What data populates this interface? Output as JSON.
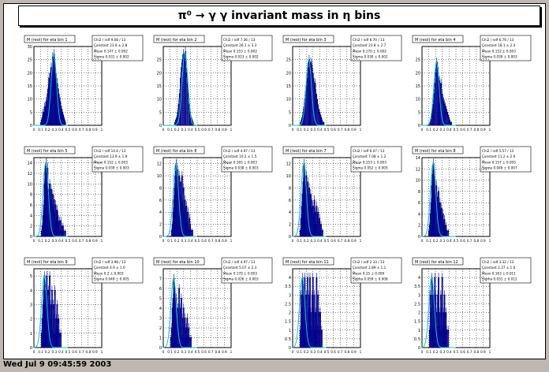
{
  "title": "π⁰ → γ γ invariant mass in η bins",
  "footer": "Wed Jul  9 09:45:59 2003",
  "chart_data": [
    {
      "type": "bar",
      "title": "M (reol) for eta bin 1",
      "ylim": [
        0,
        30
      ],
      "yticks": [
        0,
        5,
        10,
        15,
        20,
        25,
        30
      ],
      "xticks": [
        "0",
        "0.1",
        "0.2",
        "0.3",
        "0.4",
        "0.5",
        "0.6",
        "0.7",
        "0.8",
        "0.9",
        "1"
      ],
      "stats": [
        "Chi2 / ndf   9.08 / 13",
        "Constant   23.9 ± 2.8",
        "Mean   0.147 ± 0.002",
        "Sigma   0.031 ± 0.002"
      ],
      "values": [
        0,
        0,
        0,
        0,
        0,
        0,
        0,
        0,
        0,
        1,
        2,
        3,
        5,
        4,
        7,
        6,
        9,
        8,
        12,
        14,
        18,
        15,
        20,
        22,
        18,
        26,
        24,
        27,
        22,
        20,
        18,
        16,
        14,
        12,
        10,
        9,
        7,
        6,
        5,
        4,
        3,
        2,
        1,
        0,
        0,
        0
      ]
    },
    {
      "type": "bar",
      "title": "M (reol) for eta bin 2",
      "ylim": [
        0,
        30
      ],
      "yticks": [
        0,
        5,
        10,
        15,
        20,
        25
      ],
      "xticks": [
        "0",
        "0.1",
        "0.2",
        "0.3",
        "0.4",
        "0.5",
        "0.6",
        "0.7",
        "0.8",
        "0.9",
        "1"
      ],
      "stats": [
        "Chi2 / ndf   7.36 / 13",
        "Constant   26.1 ± 3.3",
        "Mean   0.153 ± 0.002",
        "Sigma   0.023 ± 0.002"
      ],
      "values": [
        0,
        0,
        0,
        0,
        0,
        0,
        0,
        0,
        0,
        0,
        0,
        0,
        1,
        2,
        3,
        5,
        8,
        12,
        18,
        22,
        25,
        27,
        24,
        28,
        20,
        16,
        12,
        8,
        5,
        3,
        2,
        1,
        0,
        0,
        0,
        0
      ]
    },
    {
      "type": "bar",
      "title": "M (reol) for eta bin 3",
      "ylim": [
        0,
        30
      ],
      "yticks": [
        0,
        5,
        10,
        15,
        20,
        25
      ],
      "xticks": [
        "0",
        "0.1",
        "0.2",
        "0.3",
        "0.4",
        "0.5",
        "0.6",
        "0.7",
        "0.8",
        "0.9",
        "1"
      ],
      "stats": [
        "Chi2 / ndf   6.70 / 13",
        "Constant   23.8 ± 2.7",
        "Mean   0.170 ± 0.002",
        "Sigma   0.030 ± 0.002"
      ],
      "values": [
        0,
        0,
        0,
        0,
        0,
        0,
        0,
        0,
        0,
        1,
        2,
        3,
        5,
        7,
        10,
        13,
        15,
        18,
        22,
        25,
        21,
        24,
        23,
        20,
        18,
        15,
        16,
        12,
        10,
        8,
        6,
        5,
        4,
        3,
        2,
        1,
        1,
        0,
        0,
        0
      ]
    },
    {
      "type": "bar",
      "title": "M (reol) for eta bin 4",
      "ylim": [
        0,
        30
      ],
      "yticks": [
        0,
        5,
        10,
        15,
        20,
        25
      ],
      "xticks": [
        "0",
        "0.1",
        "0.2",
        "0.3",
        "0.4",
        "0.5",
        "0.6",
        "0.7",
        "0.8",
        "0.9",
        "1"
      ],
      "stats": [
        "Chi2 / ndf   6.76 / 13",
        "Constant   18.1 ± 2.4",
        "Mean   0.152 ± 0.003",
        "Sigma   0.039 ± 0.003"
      ],
      "values": [
        0,
        0,
        0,
        0,
        0,
        0,
        0,
        0,
        0,
        1,
        2,
        4,
        6,
        8,
        12,
        16,
        20,
        24,
        22,
        18,
        17,
        14,
        16,
        12,
        10,
        9,
        8,
        7,
        6,
        5,
        4,
        3,
        2,
        1,
        1,
        0,
        0,
        0,
        0,
        0
      ]
    },
    {
      "type": "bar",
      "title": "M (reol) for eta bin 5",
      "ylim": [
        0,
        15
      ],
      "yticks": [
        0,
        2,
        4,
        6,
        8,
        10,
        12,
        14
      ],
      "xticks": [
        "0",
        "0.1",
        "0.2",
        "0.3",
        "0.4",
        "0.5",
        "0.6",
        "0.7",
        "0.8",
        "0.9",
        "1"
      ],
      "stats": [
        "Chi2 / ndf   14.6 / 13",
        "Constant   13.9 ± 1.9",
        "Mean   0.152 ± 0.003",
        "Sigma   0.039 ± 0.003"
      ],
      "values": [
        0,
        0,
        0,
        0,
        0,
        0,
        0,
        0,
        0,
        0,
        1,
        2,
        4,
        6,
        10,
        13,
        14,
        12,
        13,
        9,
        8,
        10,
        7,
        9,
        6,
        8,
        5,
        7,
        4,
        6,
        3,
        5,
        4,
        2,
        3,
        1,
        3,
        2,
        1,
        2,
        1,
        0,
        1,
        0,
        0,
        0
      ]
    },
    {
      "type": "bar",
      "title": "M (reol) for eta bin 6",
      "ylim": [
        0,
        13
      ],
      "yticks": [
        0,
        2,
        4,
        6,
        8,
        10,
        12
      ],
      "xticks": [
        "0",
        "0.1",
        "0.2",
        "0.3",
        "0.4",
        "0.5",
        "0.6",
        "0.7",
        "0.8",
        "0.9",
        "1"
      ],
      "stats": [
        "Chi2 / ndf   4.97 / 13",
        "Constant   10.2 ± 1.5",
        "Mean   0.165 ± 0.003",
        "Sigma   0.038 ± 0.003"
      ],
      "values": [
        0,
        0,
        0,
        0,
        0,
        0,
        0,
        0,
        0,
        0,
        0,
        1,
        2,
        4,
        6,
        8,
        10,
        12,
        9,
        11,
        8,
        10,
        7,
        9,
        6,
        10,
        5,
        8,
        4,
        6,
        3,
        5,
        2,
        4,
        1,
        3,
        2,
        1,
        0,
        1,
        0,
        0,
        0,
        0,
        0,
        0
      ]
    },
    {
      "type": "bar",
      "title": "M (reol) for eta bin 7",
      "ylim": [
        0,
        13
      ],
      "yticks": [
        0,
        2,
        4,
        6,
        8,
        10,
        12
      ],
      "xticks": [
        "0",
        "0.1",
        "0.2",
        "0.3",
        "0.4",
        "0.5",
        "0.6",
        "0.7",
        "0.8",
        "0.9",
        "1"
      ],
      "stats": [
        "Chi2 / ndf   6.07 / 13",
        "Constant   7.08 ± 1.2",
        "Mean   0.153 ± 0.003",
        "Sigma   0.052 ± 0.005"
      ],
      "values": [
        0,
        0,
        0,
        0,
        0,
        0,
        0,
        0,
        0,
        0,
        1,
        3,
        5,
        7,
        9,
        12,
        11,
        8,
        10,
        7,
        9,
        6,
        8,
        5,
        7,
        6,
        4,
        5,
        3,
        6,
        4,
        2,
        5,
        3,
        4,
        2,
        3,
        1,
        2,
        0,
        1,
        0,
        0,
        0,
        0,
        0
      ]
    },
    {
      "type": "bar",
      "title": "M (reol) for eta bin 8",
      "ylim": [
        0,
        14
      ],
      "yticks": [
        0,
        2,
        4,
        6,
        8,
        10,
        12,
        14
      ],
      "xticks": [
        "0",
        "0.1",
        "0.2",
        "0.3",
        "0.4",
        "0.5",
        "0.6",
        "0.7",
        "0.8",
        "0.9",
        "1"
      ],
      "stats": [
        "Chi2 / ndf   5.57 / 13",
        "Constant   11.2 ± 2.0",
        "Mean   0.157 ± 0.005",
        "Sigma   0.049 ± 0.007"
      ],
      "values": [
        0,
        0,
        0,
        0,
        0,
        0,
        0,
        0,
        0,
        1,
        2,
        4,
        6,
        9,
        11,
        13,
        12,
        10,
        8,
        9,
        7,
        6,
        8,
        5,
        6,
        4,
        5,
        3,
        4,
        2,
        3,
        1,
        2,
        1,
        0,
        1,
        0,
        0,
        0,
        0,
        0,
        0,
        0,
        0,
        0,
        0
      ]
    },
    {
      "type": "bar",
      "title": "M (reol) for eta bin 9",
      "ylim": [
        0,
        5.5
      ],
      "yticks": [
        0,
        1,
        2,
        3,
        4,
        5
      ],
      "xticks": [
        "0",
        "0.1",
        "0.2",
        "0.3",
        "0.4",
        "0.5",
        "0.6",
        "0.7",
        "0.8",
        "0.9",
        "1"
      ],
      "stats": [
        "Chi2 / ndf   3.98 / 13",
        "Constant   4.9 ± 1.0",
        "Mean   0.2 ± 0.003",
        "Sigma   0.049 ± 0.005"
      ],
      "values": [
        0,
        0,
        0,
        0,
        0,
        0,
        0,
        0,
        0,
        0,
        1,
        2,
        3,
        4,
        5,
        3,
        4,
        5,
        2,
        4,
        3,
        5,
        2,
        3,
        4,
        1,
        3,
        2,
        4,
        1,
        2,
        3,
        1,
        2,
        1,
        0,
        1,
        0,
        0,
        0,
        0,
        0,
        0,
        0,
        0,
        0
      ]
    },
    {
      "type": "bar",
      "title": "M (reol) for eta bin 10",
      "ylim": [
        0,
        8
      ],
      "yticks": [
        0,
        1,
        2,
        3,
        4,
        5,
        6,
        7
      ],
      "xticks": [
        "0",
        "0.1",
        "0.2",
        "0.3",
        "0.4",
        "0.5",
        "0.6",
        "0.7",
        "0.8",
        "0.9",
        "1"
      ],
      "stats": [
        "Chi2 / ndf   4.97 / 13",
        "Constant   5.07 ± 2.3",
        "Mean   0.170 ± 0.003",
        "Sigma   0.026 ± 0.003"
      ],
      "values": [
        0,
        0,
        0,
        0,
        0,
        0,
        0,
        0,
        0,
        0,
        1,
        2,
        4,
        5,
        7,
        6,
        3,
        5,
        2,
        4,
        3,
        6,
        2,
        4,
        5,
        1,
        3,
        4,
        2,
        3,
        1,
        2,
        3,
        1,
        2,
        1,
        0,
        1,
        0,
        0,
        0,
        0,
        0,
        0,
        0,
        0
      ]
    },
    {
      "type": "bar",
      "title": "M (reol) for eta bin 11",
      "ylim": [
        0,
        4.5
      ],
      "yticks": [
        0,
        0.5,
        1,
        1.5,
        2,
        2.5,
        3,
        3.5,
        4
      ],
      "xticks": [
        "0",
        "0.1",
        "0.2",
        "0.3",
        "0.4",
        "0.5",
        "0.6",
        "0.7",
        "0.8",
        "0.9",
        "1"
      ],
      "stats": [
        "Chi2 / ndf   2.33 / 13",
        "Constant   2.89 ± 1.1",
        "Mean   0.15 ± 0.009",
        "Sigma   0.059 ± 0.008"
      ],
      "values": [
        0,
        0,
        0,
        0,
        0,
        0,
        0,
        0,
        0,
        0,
        1,
        3,
        2,
        4,
        3,
        1,
        4,
        2,
        3,
        1,
        4,
        2,
        3,
        4,
        2,
        1,
        3,
        4,
        2,
        3,
        1,
        2,
        4,
        1,
        3,
        2,
        1,
        2,
        0,
        1,
        0,
        0,
        0,
        0,
        0,
        0
      ]
    },
    {
      "type": "bar",
      "title": "M (reol) for eta bin 12",
      "ylim": [
        0,
        4.5
      ],
      "yticks": [
        0,
        0.5,
        1,
        1.5,
        2,
        2.5,
        3,
        3.5,
        4
      ],
      "xticks": [
        "0",
        "0.1",
        "0.2",
        "0.3",
        "0.4",
        "0.5",
        "0.6",
        "0.7",
        "0.8",
        "0.9",
        "1"
      ],
      "stats": [
        "Chi2 / ndf   3.32 / 13",
        "Constant   2.37 ± 1.0",
        "Mean   0.163 ± 0.011",
        "Sigma   0.031 ± 0.012"
      ],
      "values": [
        0,
        0,
        0,
        0,
        0,
        0,
        0,
        0,
        0,
        0,
        1,
        3,
        2,
        4,
        1,
        3,
        2,
        4,
        3,
        2,
        1,
        3,
        4,
        2,
        1,
        3,
        2,
        4,
        1,
        2,
        3,
        1,
        2,
        1,
        0,
        1,
        0,
        0,
        0,
        0,
        0,
        0,
        0,
        0,
        0,
        0
      ]
    }
  ]
}
